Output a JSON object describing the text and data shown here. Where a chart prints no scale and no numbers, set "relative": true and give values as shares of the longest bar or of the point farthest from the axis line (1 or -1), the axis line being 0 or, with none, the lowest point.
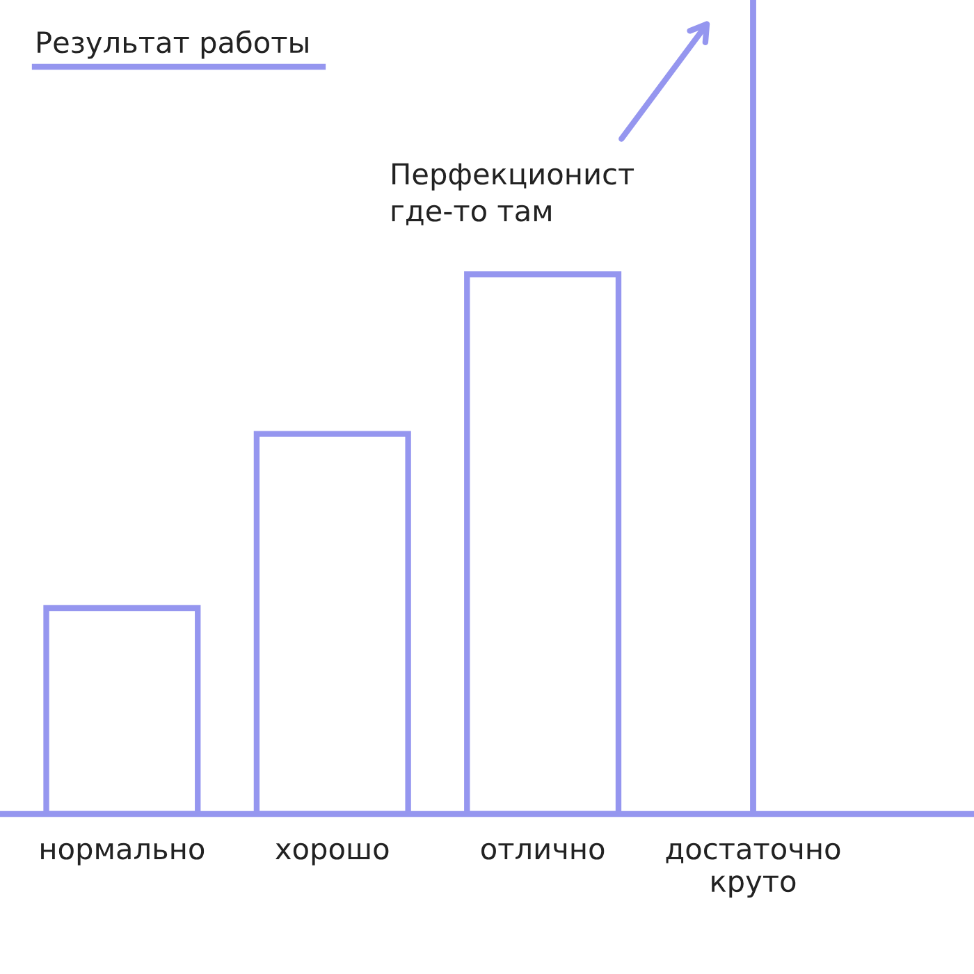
{
  "chart_data": {
    "type": "bar",
    "title": "Результат работы",
    "relative": true,
    "categories": [
      "нормально",
      "хорошо",
      "отлично",
      "достаточно\nкруто"
    ],
    "values": [
      0.253,
      0.467,
      0.663,
      1
    ],
    "color": "#9596ef",
    "annotations": [
      "Перфекционист\nгде-то там"
    ],
    "grid": false,
    "legend": false
  }
}
